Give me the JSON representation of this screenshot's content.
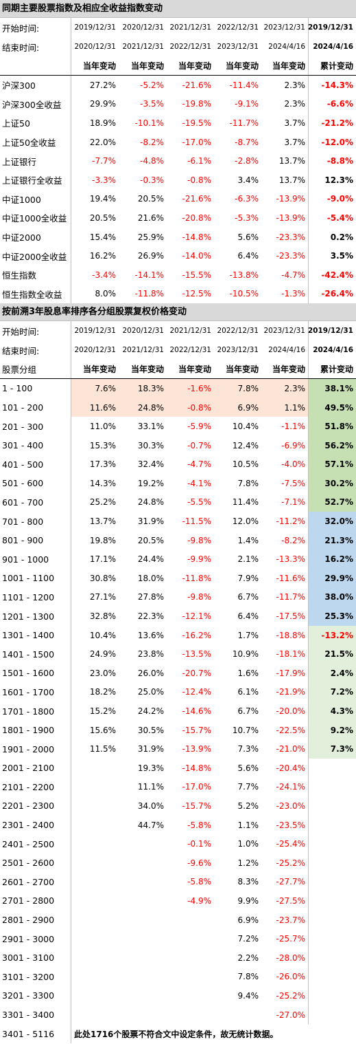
{
  "section1": {
    "title": "同期主要股票指数及相应全收益指数变动",
    "start_label": "开始时间:",
    "end_label": "结束时间:",
    "start_dates": [
      "2019/12/31",
      "2020/12/31",
      "2021/12/31",
      "2022/12/31",
      "2023/12/31"
    ],
    "end_dates": [
      "2020/12/31",
      "2021/12/31",
      "2022/12/31",
      "2023/12/31",
      "2024/4/16"
    ],
    "cum_start": "2019/12/31",
    "cum_end": "2024/4/16",
    "col_headers": [
      "当年变动",
      "当年变动",
      "当年变动",
      "当年变动",
      "当年变动"
    ],
    "cum_header": "累计变动",
    "rows": [
      {
        "label": "沪深300",
        "values": [
          "27.2%",
          "-5.2%",
          "-21.6%",
          "-11.4%",
          "2.3%"
        ],
        "cum": "-14.3%"
      },
      {
        "label": "沪深300全收益",
        "values": [
          "29.9%",
          "-3.5%",
          "-19.8%",
          "-9.1%",
          "2.3%"
        ],
        "cum": "-6.6%"
      },
      {
        "label": "上证50",
        "values": [
          "18.9%",
          "-10.1%",
          "-19.5%",
          "-11.7%",
          "3.7%"
        ],
        "cum": "-21.2%"
      },
      {
        "label": "上证50全收益",
        "values": [
          "22.0%",
          "-8.2%",
          "-17.0%",
          "-8.7%",
          "3.7%"
        ],
        "cum": "-12.0%"
      },
      {
        "label": "上证银行",
        "values": [
          "-7.7%",
          "-4.8%",
          "-6.1%",
          "-2.8%",
          "13.7%"
        ],
        "cum": "-8.8%"
      },
      {
        "label": "上证银行全收益",
        "values": [
          "-3.3%",
          "-0.3%",
          "-0.8%",
          "3.4%",
          "13.7%"
        ],
        "cum": "12.3%"
      },
      {
        "label": "中证1000",
        "values": [
          "19.4%",
          "20.5%",
          "-21.6%",
          "-6.3%",
          "-13.9%"
        ],
        "cum": "-9.0%"
      },
      {
        "label": "中证1000全收益",
        "values": [
          "20.5%",
          "21.6%",
          "-20.8%",
          "-5.3%",
          "-13.9%"
        ],
        "cum": "-5.4%"
      },
      {
        "label": "中证2000",
        "values": [
          "15.4%",
          "25.9%",
          "-14.8%",
          "5.6%",
          "-23.3%"
        ],
        "cum": "0.2%"
      },
      {
        "label": "中证2000全收益",
        "values": [
          "16.2%",
          "26.9%",
          "-14.0%",
          "6.4%",
          "-23.3%"
        ],
        "cum": "3.5%"
      },
      {
        "label": "恒生指数",
        "values": [
          "-3.4%",
          "-14.1%",
          "-15.5%",
          "-13.8%",
          "-4.7%"
        ],
        "cum": "-42.4%"
      },
      {
        "label": "恒生指数全收益",
        "values": [
          "8.0%",
          "-11.8%",
          "-12.5%",
          "-10.5%",
          "-1.3%"
        ],
        "cum": "-26.4%"
      }
    ]
  },
  "section2": {
    "title": "按前溯3年股息率排序各分组股票复权价格变动",
    "start_label": "开始时间:",
    "end_label": "结束时间:",
    "group_label": "股票分组",
    "start_dates": [
      "2019/12/31",
      "2020/12/31",
      "2021/12/31",
      "2022/12/31",
      "2023/12/31"
    ],
    "end_dates": [
      "2020/12/31",
      "2021/12/31",
      "2022/12/31",
      "2023/12/31",
      "2024/4/16"
    ],
    "cum_start": "2019/12/31",
    "cum_end": "2024/4/16",
    "col_headers": [
      "当年变动",
      "当年变动",
      "当年变动",
      "当年变动",
      "当年变动"
    ],
    "cum_header": "累计变动",
    "highlight_colors": {
      "peach": "#fce4d6",
      "green": "#c6e0b4",
      "blue": "#bdd7ee",
      "lightgreen": "#e2efda"
    },
    "rows": [
      {
        "label": "1 - 100",
        "values": [
          "7.6%",
          "18.3%",
          "-1.6%",
          "7.8%",
          "2.3%"
        ],
        "cum": "38.1%",
        "row_bg": "peach",
        "cum_bg": "green"
      },
      {
        "label": "101 - 200",
        "values": [
          "11.6%",
          "24.8%",
          "-0.8%",
          "6.9%",
          "1.1%"
        ],
        "cum": "49.5%",
        "row_bg": "peach",
        "cum_bg": "green"
      },
      {
        "label": "201 - 300",
        "values": [
          "11.0%",
          "33.1%",
          "-5.9%",
          "10.4%",
          "-1.1%"
        ],
        "cum": "51.8%",
        "cum_bg": "green"
      },
      {
        "label": "301 - 400",
        "values": [
          "15.3%",
          "30.3%",
          "-0.7%",
          "12.4%",
          "-6.9%"
        ],
        "cum": "56.2%",
        "cum_bg": "green"
      },
      {
        "label": "401 - 500",
        "values": [
          "17.3%",
          "32.4%",
          "-4.7%",
          "10.5%",
          "-4.0%"
        ],
        "cum": "57.1%",
        "cum_bg": "green"
      },
      {
        "label": "501 - 600",
        "values": [
          "14.3%",
          "19.2%",
          "-4.1%",
          "7.8%",
          "-7.5%"
        ],
        "cum": "30.2%",
        "cum_bg": "green"
      },
      {
        "label": "601 - 700",
        "values": [
          "25.2%",
          "24.8%",
          "-5.5%",
          "11.4%",
          "-7.1%"
        ],
        "cum": "52.7%",
        "cum_bg": "green"
      },
      {
        "label": "701 - 800",
        "values": [
          "13.7%",
          "31.9%",
          "-11.5%",
          "12.0%",
          "-11.2%"
        ],
        "cum": "32.0%",
        "cum_bg": "blue"
      },
      {
        "label": "801 - 900",
        "values": [
          "19.8%",
          "20.5%",
          "-9.8%",
          "1.4%",
          "-8.2%"
        ],
        "cum": "21.3%",
        "cum_bg": "blue"
      },
      {
        "label": "901 - 1000",
        "values": [
          "17.1%",
          "24.4%",
          "-9.9%",
          "2.1%",
          "-13.3%"
        ],
        "cum": "16.2%",
        "cum_bg": "blue"
      },
      {
        "label": "1001 - 1100",
        "values": [
          "30.8%",
          "18.0%",
          "-11.8%",
          "7.9%",
          "-11.6%"
        ],
        "cum": "29.9%",
        "cum_bg": "blue"
      },
      {
        "label": "1101 - 1200",
        "values": [
          "27.1%",
          "27.8%",
          "-9.8%",
          "6.7%",
          "-11.7%"
        ],
        "cum": "38.0%",
        "cum_bg": "blue"
      },
      {
        "label": "1201 - 1300",
        "values": [
          "32.8%",
          "22.3%",
          "-12.1%",
          "6.4%",
          "-17.5%"
        ],
        "cum": "25.3%",
        "cum_bg": "blue"
      },
      {
        "label": "1301 - 1400",
        "values": [
          "10.4%",
          "13.6%",
          "-16.2%",
          "1.7%",
          "-18.8%"
        ],
        "cum": "-13.2%",
        "cum_bg": "lightgreen"
      },
      {
        "label": "1401 - 1500",
        "values": [
          "24.9%",
          "23.8%",
          "-13.5%",
          "10.9%",
          "-18.1%"
        ],
        "cum": "21.5%",
        "cum_bg": "lightgreen"
      },
      {
        "label": "1501 - 1600",
        "values": [
          "23.0%",
          "26.0%",
          "-20.7%",
          "1.6%",
          "-17.9%"
        ],
        "cum": "2.4%",
        "cum_bg": "lightgreen"
      },
      {
        "label": "1601 - 1700",
        "values": [
          "18.2%",
          "25.0%",
          "-12.4%",
          "6.1%",
          "-21.9%"
        ],
        "cum": "7.2%",
        "cum_bg": "lightgreen"
      },
      {
        "label": "1701 - 1800",
        "values": [
          "15.2%",
          "24.2%",
          "-14.6%",
          "6.7%",
          "-20.0%"
        ],
        "cum": "4.3%",
        "cum_bg": "lightgreen"
      },
      {
        "label": "1801 - 1900",
        "values": [
          "15.6%",
          "30.5%",
          "-15.7%",
          "10.7%",
          "-22.5%"
        ],
        "cum": "9.2%",
        "cum_bg": "lightgreen"
      },
      {
        "label": "1901 - 2000",
        "values": [
          "11.5%",
          "31.9%",
          "-13.9%",
          "7.3%",
          "-21.0%"
        ],
        "cum": "7.3%",
        "cum_bg": "lightgreen"
      },
      {
        "label": "2001 - 2100",
        "values": [
          "",
          "19.3%",
          "-14.8%",
          "5.6%",
          "-20.4%"
        ],
        "cum": ""
      },
      {
        "label": "2101 - 2200",
        "values": [
          "",
          "11.1%",
          "-17.0%",
          "7.7%",
          "-24.1%"
        ],
        "cum": ""
      },
      {
        "label": "2201 - 2300",
        "values": [
          "",
          "34.0%",
          "-15.7%",
          "5.2%",
          "-23.0%"
        ],
        "cum": ""
      },
      {
        "label": "2301 - 2400",
        "values": [
          "",
          "44.7%",
          "-5.8%",
          "1.1%",
          "-23.5%"
        ],
        "cum": ""
      },
      {
        "label": "2401 - 2500",
        "values": [
          "",
          "",
          "-0.1%",
          "1.0%",
          "-25.4%"
        ],
        "cum": ""
      },
      {
        "label": "2501 - 2600",
        "values": [
          "",
          "",
          "-9.6%",
          "1.2%",
          "-25.2%"
        ],
        "cum": ""
      },
      {
        "label": "2601 - 2700",
        "values": [
          "",
          "",
          "-5.8%",
          "8.3%",
          "-27.7%"
        ],
        "cum": ""
      },
      {
        "label": "2701 - 2800",
        "values": [
          "",
          "",
          "-4.9%",
          "9.9%",
          "-27.5%"
        ],
        "cum": ""
      },
      {
        "label": "2801 - 2900",
        "values": [
          "",
          "",
          "",
          "6.9%",
          "-23.7%"
        ],
        "cum": ""
      },
      {
        "label": "2901 - 3000",
        "values": [
          "",
          "",
          "",
          "7.2%",
          "-25.7%"
        ],
        "cum": ""
      },
      {
        "label": "3001 - 3100",
        "values": [
          "",
          "",
          "",
          "2.2%",
          "-28.0%"
        ],
        "cum": ""
      },
      {
        "label": "3101 - 3200",
        "values": [
          "",
          "",
          "",
          "7.8%",
          "-26.0%"
        ],
        "cum": ""
      },
      {
        "label": "3201 - 3300",
        "values": [
          "",
          "",
          "",
          "9.4%",
          "-25.2%"
        ],
        "cum": ""
      },
      {
        "label": "3301 - 3400",
        "values": [
          "",
          "",
          "",
          "",
          "-27.0%"
        ],
        "cum": ""
      }
    ],
    "final_row": {
      "label": "3401 - 5116",
      "note": "此处1716个股票不符合文中设定条件，故无统计数据。"
    }
  }
}
